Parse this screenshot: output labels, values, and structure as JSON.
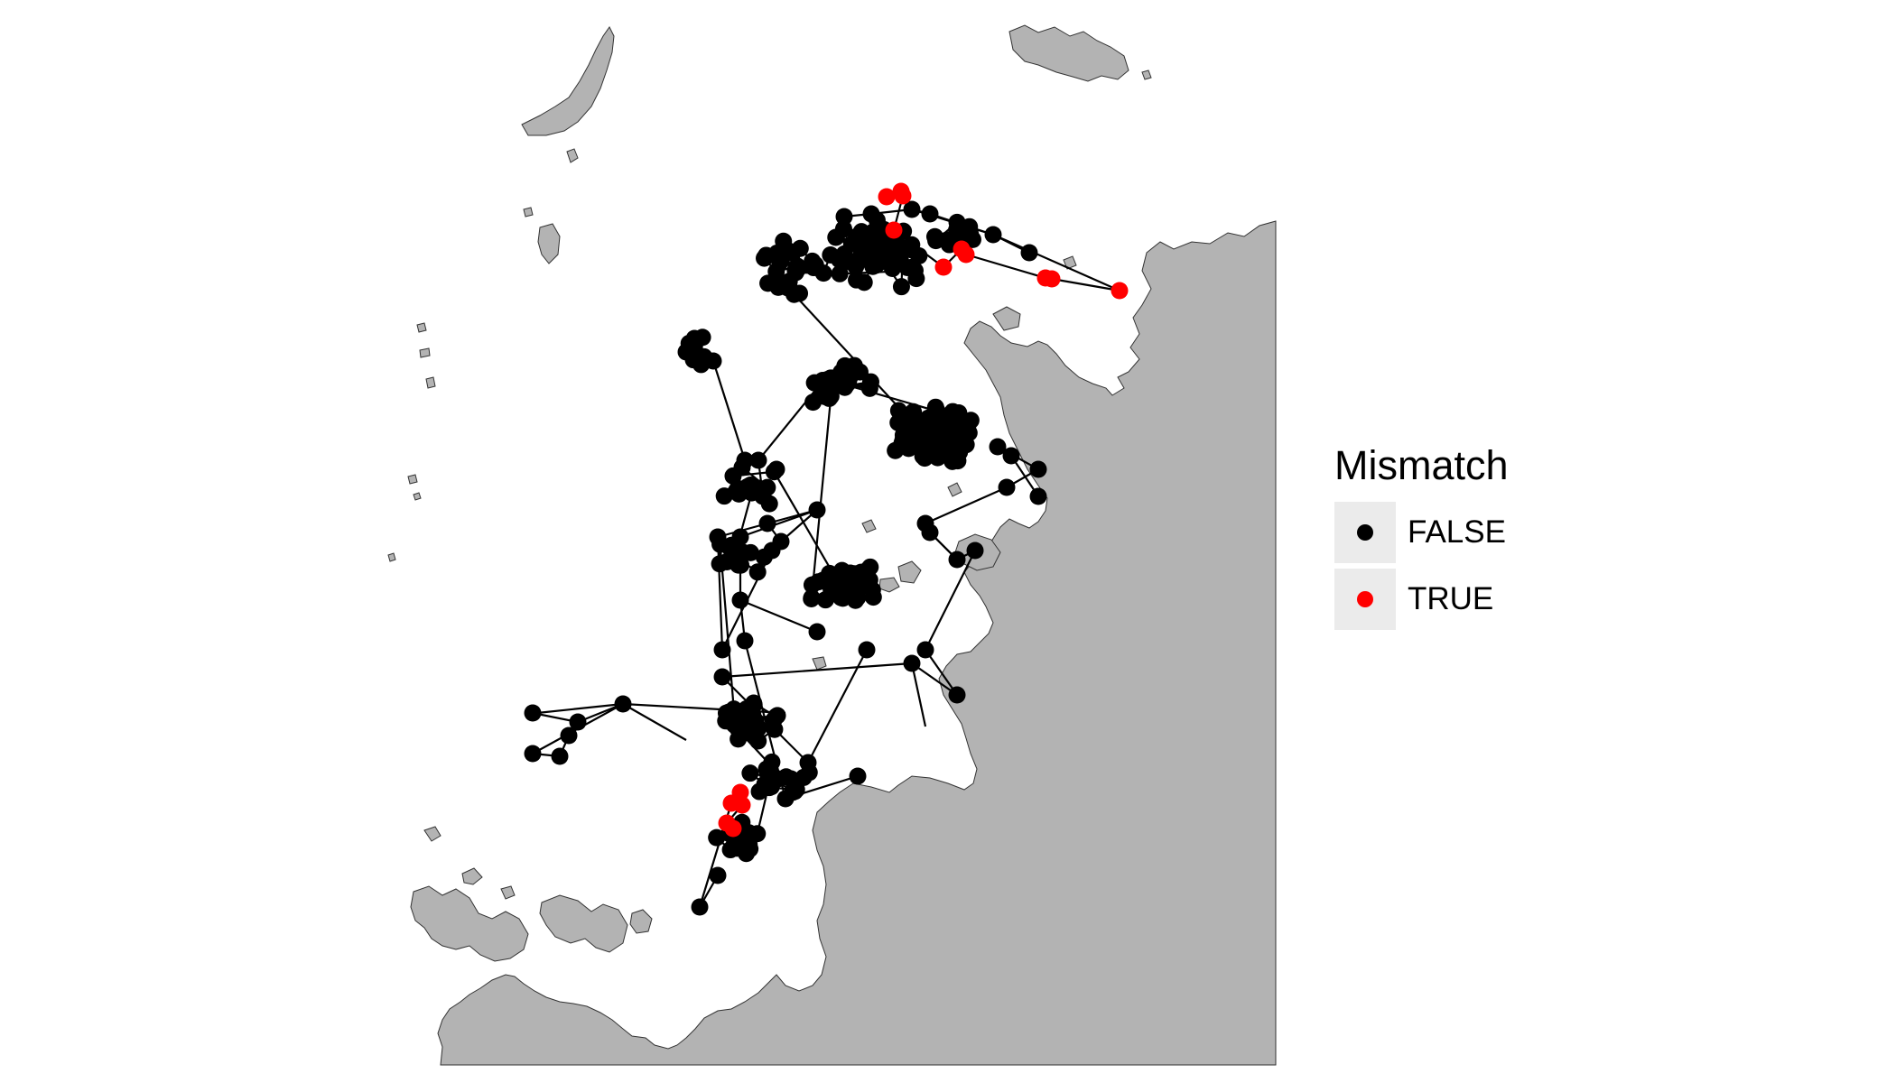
{
  "legend": {
    "title": "Mismatch",
    "items": [
      {
        "label": "FALSE",
        "color": "#000000"
      },
      {
        "label": "TRUE",
        "color": "#ff0000"
      }
    ]
  },
  "colors": {
    "land": "#b3b3b3",
    "land_outline": "#333333",
    "sea": "#ffffff",
    "track_line": "#000000",
    "point_false": "#000000",
    "point_true": "#ff0000"
  }
}
